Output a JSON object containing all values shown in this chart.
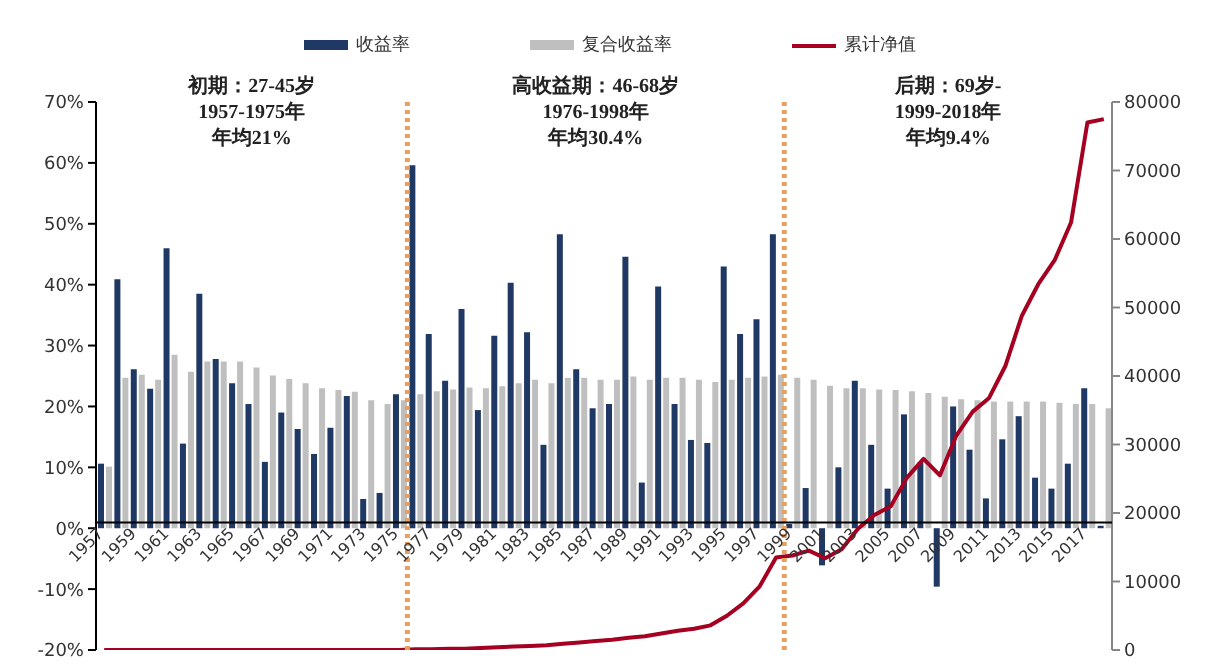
{
  "chart_data": {
    "type": "bar",
    "x": [
      1957,
      1958,
      1959,
      1960,
      1961,
      1962,
      1963,
      1964,
      1965,
      1966,
      1967,
      1968,
      1969,
      1970,
      1971,
      1972,
      1973,
      1974,
      1975,
      1976,
      1977,
      1978,
      1979,
      1980,
      1981,
      1982,
      1983,
      1984,
      1985,
      1986,
      1987,
      1988,
      1989,
      1990,
      1991,
      1992,
      1993,
      1994,
      1995,
      1996,
      1997,
      1998,
      1999,
      2000,
      2001,
      2002,
      2003,
      2004,
      2005,
      2006,
      2007,
      2008,
      2009,
      2010,
      2011,
      2012,
      2013,
      2014,
      2015,
      2016,
      2017,
      2018
    ],
    "series": [
      {
        "name": "收益率",
        "color": "#1f3864",
        "values": [
          10.6,
          40.9,
          26.1,
          22.9,
          46.0,
          13.9,
          38.5,
          27.8,
          23.8,
          20.4,
          10.9,
          19.0,
          16.3,
          12.2,
          16.5,
          21.7,
          4.8,
          5.8,
          22.0,
          59.6,
          31.9,
          24.2,
          36.0,
          19.4,
          31.6,
          40.3,
          32.2,
          13.7,
          48.3,
          26.1,
          19.7,
          20.4,
          44.6,
          7.5,
          39.7,
          20.4,
          14.5,
          14.0,
          43.0,
          31.9,
          34.3,
          48.3,
          0.7,
          6.6,
          -6.1,
          10.0,
          24.2,
          13.7,
          6.5,
          18.7,
          10.8,
          -9.6,
          20.0,
          12.9,
          4.9,
          14.6,
          18.4,
          8.3,
          6.5,
          10.6,
          23.0,
          0.4
        ]
      },
      {
        "name": "复合收益率",
        "color": "#bfbfbf",
        "values": [
          10.1,
          24.7,
          25.2,
          24.4,
          28.5,
          25.7,
          27.4,
          27.4,
          27.4,
          26.4,
          25.1,
          24.5,
          23.8,
          23.0,
          22.7,
          22.4,
          21.0,
          20.4,
          21.0,
          22.0,
          22.5,
          22.8,
          23.1,
          23.0,
          23.3,
          23.8,
          24.4,
          23.8,
          24.7,
          24.7,
          24.4,
          24.4,
          24.9,
          24.4,
          24.7,
          24.7,
          24.4,
          24.0,
          24.4,
          24.7,
          24.9,
          25.2,
          24.7,
          24.4,
          23.4,
          23.0,
          23.0,
          22.8,
          22.7,
          22.5,
          22.2,
          21.6,
          21.2,
          21.0,
          20.8,
          20.8,
          20.8,
          20.8,
          20.6,
          20.4,
          20.4,
          19.7
        ]
      },
      {
        "name": "累计净值",
        "type": "line",
        "axis": "y2",
        "color": "#a50021",
        "values": [
          0,
          0,
          0,
          0,
          0,
          0,
          0,
          0,
          0,
          0,
          0,
          0,
          0,
          0,
          0,
          0,
          0,
          0,
          0,
          100,
          100,
          200,
          200,
          300,
          400,
          500,
          600,
          700,
          900,
          1100,
          1300,
          1500,
          1800,
          2000,
          2400,
          2800,
          3100,
          3600,
          5000,
          6800,
          9300,
          13500,
          13800,
          14500,
          13400,
          14700,
          17700,
          19700,
          21000,
          25200,
          27900,
          25500,
          31300,
          34800,
          36800,
          41500,
          48800,
          53400,
          56900,
          62400,
          77000,
          77500
        ]
      }
    ],
    "xlim": [
      1956.5,
      2018.5
    ],
    "xticks": [
      1957,
      1959,
      1961,
      1963,
      1965,
      1967,
      1969,
      1971,
      1973,
      1975,
      1977,
      1979,
      1981,
      1983,
      1985,
      1987,
      1989,
      1991,
      1993,
      1995,
      1997,
      1999,
      2001,
      2003,
      2005,
      2007,
      2009,
      2011,
      2013,
      2015,
      2017
    ],
    "ylim": [
      -20,
      70
    ],
    "yticks": [
      {
        "value": -20,
        "label": "-20%"
      },
      {
        "value": -10,
        "label": "-10%"
      },
      {
        "value": 0,
        "label": "0%"
      },
      {
        "value": 10,
        "label": "10%"
      },
      {
        "value": 20,
        "label": "20%"
      },
      {
        "value": 30,
        "label": "30%"
      },
      {
        "value": 40,
        "label": "40%"
      },
      {
        "value": 50,
        "label": "50%"
      },
      {
        "value": 60,
        "label": "60%"
      },
      {
        "value": 70,
        "label": "70%"
      }
    ],
    "y2lim": [
      0,
      80000
    ],
    "y2ticks": [
      0,
      10000,
      20000,
      30000,
      40000,
      50000,
      60000,
      70000,
      80000
    ],
    "ref_lines": [
      {
        "axis": "x",
        "value": 1975.5,
        "color": "#e8a060",
        "line_style": "dotted"
      },
      {
        "axis": "x",
        "value": 1998.5,
        "color": "#e8a060",
        "line_style": "dotted"
      }
    ],
    "annotations": [
      "初期：27-45岁",
      "1957-1975年",
      "年均21%",
      "高收益期：46-68岁",
      "1976-1998年",
      "年均30.4%",
      "后期：69岁-",
      "1999-2018年",
      "年均9.4%"
    ],
    "legend": "top",
    "grid": false
  }
}
